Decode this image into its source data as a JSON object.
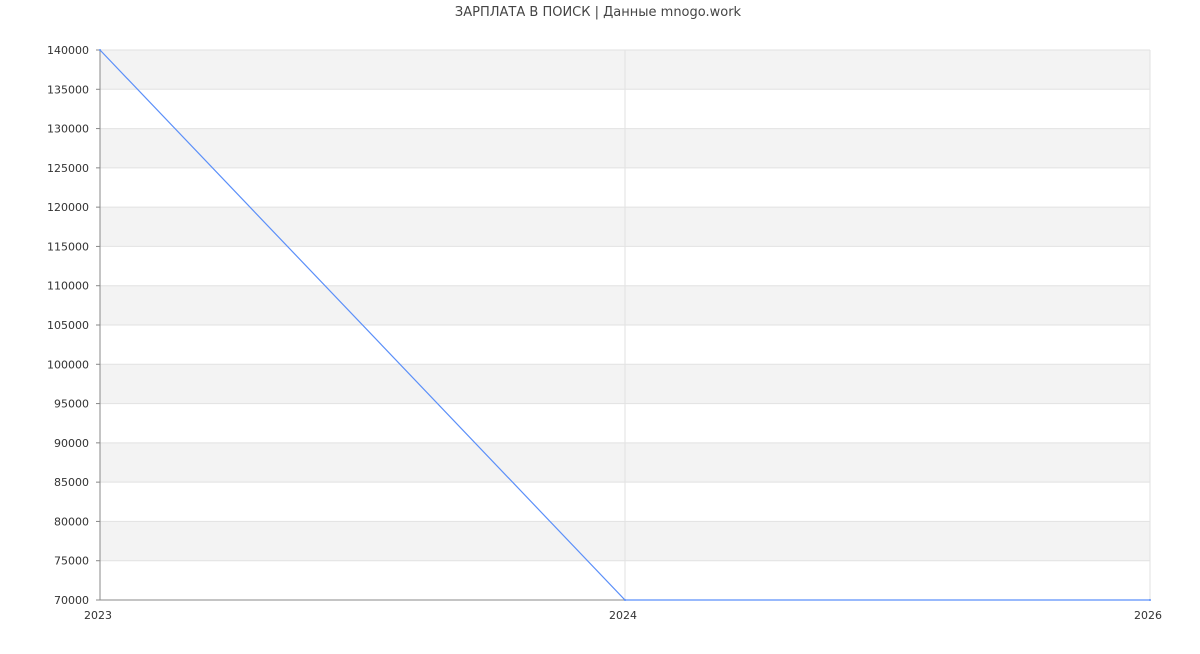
{
  "chart_data": {
    "type": "line",
    "title": "ЗАРПЛАТА В ПОИСК | Данные mnogo.work",
    "categories": [
      "2023",
      "2024",
      "2026"
    ],
    "series": [
      {
        "values": [
          140000,
          70000,
          70000
        ]
      }
    ],
    "xlabel": "",
    "ylabel": "",
    "ylim": [
      70000,
      140000
    ],
    "yticks": [
      "70000",
      "75000",
      "80000",
      "85000",
      "90000",
      "95000",
      "100000",
      "105000",
      "110000",
      "115000",
      "120000",
      "125000",
      "130000",
      "135000",
      "140000"
    ],
    "grid": true,
    "line_color": "#5b8ff9",
    "band_color": "#f3f3f3"
  }
}
